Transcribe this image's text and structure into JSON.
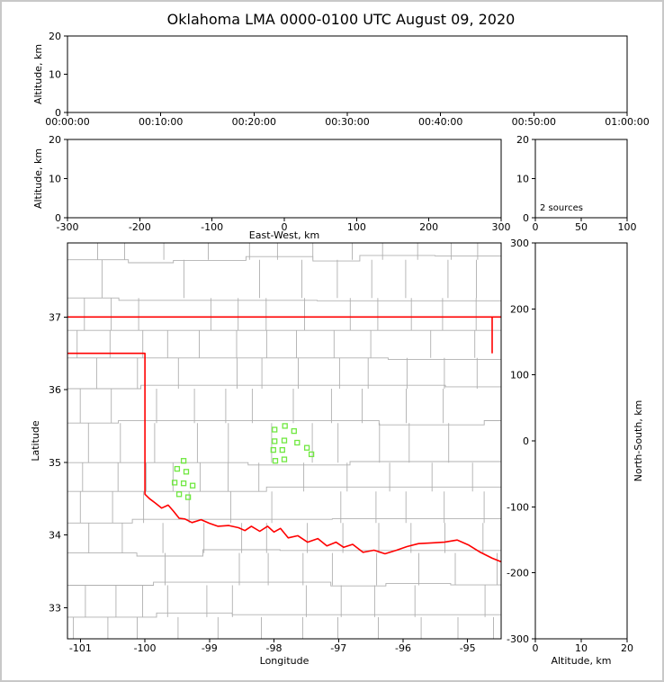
{
  "title": "Oklahoma LMA 0000-0100 UTC August 09, 2020",
  "colors": {
    "background": "#ffffff",
    "frame": "#c8c8c8",
    "axis": "#000000",
    "county_lines": "#b0b0b0",
    "state_border": "#ff0000",
    "station_marker": "#70e840"
  },
  "chart_data": [
    {
      "id": "time_height",
      "type": "scatter",
      "ylabel": "Altitude, km",
      "xtick_labels": [
        "00:00:00",
        "00:10:00",
        "00:20:00",
        "00:30:00",
        "00:40:00",
        "00:50:00",
        "01:00:00"
      ],
      "ylim": [
        0,
        20
      ],
      "yticks": [
        0,
        10,
        20
      ],
      "points": []
    },
    {
      "id": "ew_height",
      "type": "scatter",
      "xlabel": "East-West, km",
      "ylabel": "Altitude, km",
      "xlim": [
        -300,
        300
      ],
      "xticks": [
        -300,
        -200,
        -100,
        0,
        100,
        200,
        300
      ],
      "ylim": [
        0,
        20
      ],
      "yticks": [
        0,
        10,
        20
      ],
      "points": []
    },
    {
      "id": "source_histogram",
      "type": "line",
      "annotation": "2 sources",
      "xlim": [
        0,
        100
      ],
      "xticks": [
        0,
        50,
        100
      ],
      "ylim": [
        0,
        20
      ],
      "yticks": [
        0,
        10,
        20
      ],
      "points": []
    },
    {
      "id": "plan_view",
      "type": "scatter",
      "xlabel": "Longitude",
      "ylabel": "Latitude",
      "xlim": [
        -101.2,
        -94.48
      ],
      "xticks": [
        -101,
        -100,
        -99,
        -98,
        -97,
        -96,
        -95
      ],
      "ylim": [
        32.57,
        38.02
      ],
      "yticks": [
        33,
        34,
        35,
        36,
        37
      ],
      "stations_lonlat": [
        [
          -99.4,
          35.02
        ],
        [
          -99.5,
          34.91
        ],
        [
          -99.36,
          34.87
        ],
        [
          -99.54,
          34.72
        ],
        [
          -99.4,
          34.71
        ],
        [
          -99.26,
          34.68
        ],
        [
          -99.47,
          34.56
        ],
        [
          -99.33,
          34.52
        ],
        [
          -97.99,
          35.45
        ],
        [
          -97.83,
          35.5
        ],
        [
          -97.69,
          35.43
        ],
        [
          -97.99,
          35.29
        ],
        [
          -97.84,
          35.3
        ],
        [
          -97.64,
          35.27
        ],
        [
          -98.01,
          35.17
        ],
        [
          -97.87,
          35.17
        ],
        [
          -97.98,
          35.02
        ],
        [
          -97.84,
          35.04
        ],
        [
          -97.49,
          35.2
        ],
        [
          -97.42,
          35.11
        ]
      ],
      "state_boundary": [
        [
          [
            -101.2,
            37.0
          ],
          [
            -94.48,
            37.0
          ]
        ],
        [
          [
            -94.62,
            37.0
          ],
          [
            -94.62,
            36.5
          ]
        ],
        [
          [
            -101.2,
            36.5
          ],
          [
            -100.0,
            36.5
          ],
          [
            -100.0,
            34.56
          ],
          [
            -99.93,
            34.5
          ],
          [
            -99.84,
            34.44
          ],
          [
            -99.74,
            34.37
          ],
          [
            -99.64,
            34.41
          ],
          [
            -99.56,
            34.33
          ],
          [
            -99.47,
            34.23
          ],
          [
            -99.38,
            34.22
          ],
          [
            -99.27,
            34.17
          ],
          [
            -99.13,
            34.21
          ],
          [
            -99.0,
            34.16
          ],
          [
            -98.87,
            34.12
          ],
          [
            -98.7,
            34.13
          ],
          [
            -98.55,
            34.1
          ],
          [
            -98.45,
            34.06
          ],
          [
            -98.35,
            34.12
          ],
          [
            -98.22,
            34.05
          ],
          [
            -98.1,
            34.12
          ],
          [
            -98.0,
            34.04
          ],
          [
            -97.9,
            34.09
          ],
          [
            -97.78,
            33.96
          ],
          [
            -97.63,
            33.99
          ],
          [
            -97.48,
            33.9
          ],
          [
            -97.32,
            33.95
          ],
          [
            -97.18,
            33.85
          ],
          [
            -97.04,
            33.9
          ],
          [
            -96.92,
            33.83
          ],
          [
            -96.78,
            33.87
          ],
          [
            -96.62,
            33.76
          ],
          [
            -96.45,
            33.79
          ],
          [
            -96.28,
            33.74
          ],
          [
            -96.1,
            33.79
          ],
          [
            -95.94,
            33.84
          ],
          [
            -95.76,
            33.88
          ],
          [
            -95.56,
            33.89
          ],
          [
            -95.36,
            33.9
          ],
          [
            -95.16,
            33.93
          ],
          [
            -94.98,
            33.86
          ],
          [
            -94.8,
            33.76
          ],
          [
            -94.62,
            33.68
          ],
          [
            -94.48,
            33.63
          ]
        ]
      ]
    },
    {
      "id": "ns_height",
      "type": "scatter",
      "xlabel": "Altitude, km",
      "ylabel": "North-South, km",
      "xlim": [
        0,
        20
      ],
      "xticks": [
        0,
        10,
        20
      ],
      "ylim": [
        -300,
        300
      ],
      "yticks": [
        -300,
        -200,
        -100,
        0,
        100,
        200,
        300
      ],
      "points": []
    }
  ]
}
